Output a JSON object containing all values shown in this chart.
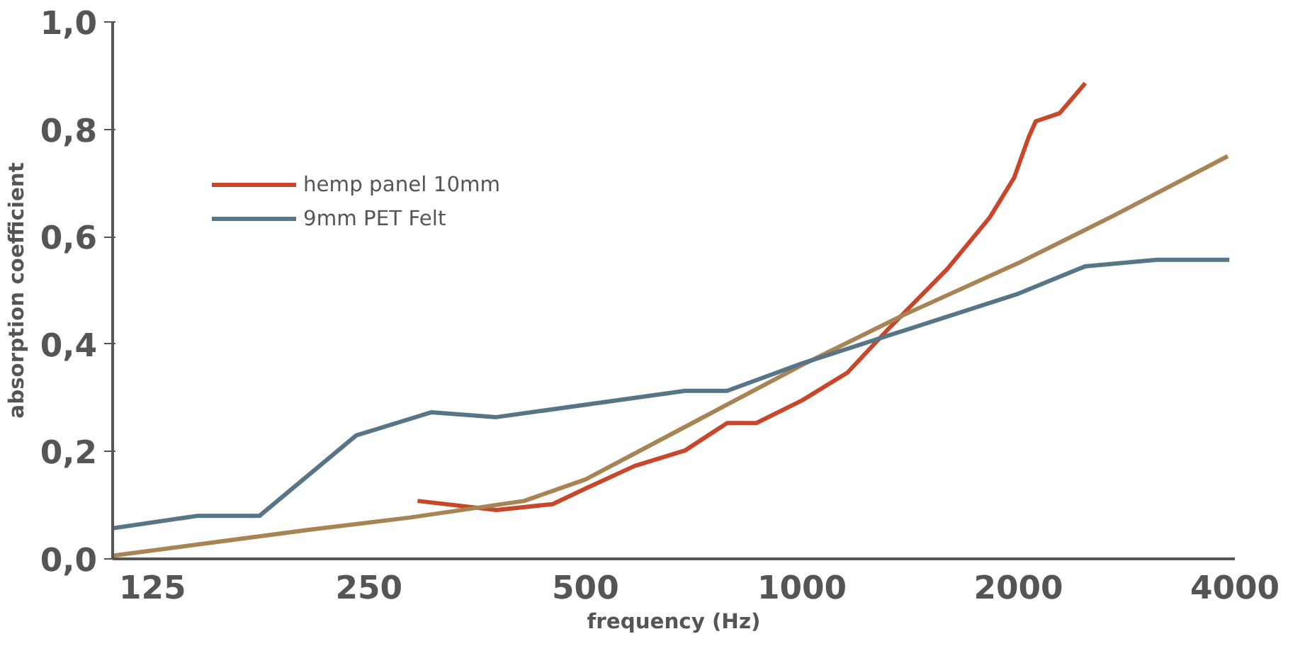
{
  "chart_data": {
    "type": "line",
    "xlabel": "frequency (Hz)",
    "ylabel": "absorption coefficient",
    "log": "x",
    "xlim": [
      110,
      4000
    ],
    "ylim": [
      0,
      1
    ],
    "xticks": [
      125,
      250,
      500,
      1000,
      2000,
      4000
    ],
    "yticks": [
      {
        "value": 0,
        "label": "0,0"
      },
      {
        "value": 0.2,
        "label": "0,2"
      },
      {
        "value": 0.4,
        "label": "0,4"
      },
      {
        "value": 0.6,
        "label": "0,6"
      },
      {
        "value": 0.8,
        "label": "0,8"
      },
      {
        "value": 1,
        "label": "1,0"
      }
    ],
    "grid": false,
    "legend": "top left",
    "marker": "none",
    "line_style": "solid",
    "series": [
      {
        "name": "hemp panel 10mm",
        "color": "#c8472a",
        "x": [
          292,
          376,
          450,
          500,
          585,
          688,
          787,
          864,
          1000,
          1157,
          1327,
          1593,
          1825,
          1973,
          2065,
          2114,
          2282,
          2478
        ],
        "values": [
          0.108,
          0.091,
          0.102,
          0.131,
          0.173,
          0.202,
          0.253,
          0.253,
          0.295,
          0.347,
          0.432,
          0.54,
          0.636,
          0.71,
          0.784,
          0.815,
          0.83,
          0.886
        ]
      },
      {
        "color": "#a88455",
        "x": [
          110,
          206,
          285,
          411,
          500,
          704,
          1000,
          1389,
          2000,
          2711,
          3910
        ],
        "values": [
          0.006,
          0.054,
          0.077,
          0.108,
          0.148,
          0.253,
          0.361,
          0.455,
          0.551,
          0.639,
          0.75
        ]
      },
      {
        "name": "9mm PET Felt",
        "color": "#587588",
        "x": [
          110,
          144,
          176,
          240,
          305,
          376,
          688,
          787,
          1000,
          2000,
          2478,
          3114,
          3930
        ],
        "values": [
          0.057,
          0.08,
          0.08,
          0.23,
          0.273,
          0.264,
          0.313,
          0.313,
          0.364,
          0.494,
          0.545,
          0.557,
          0.557
        ]
      }
    ]
  }
}
